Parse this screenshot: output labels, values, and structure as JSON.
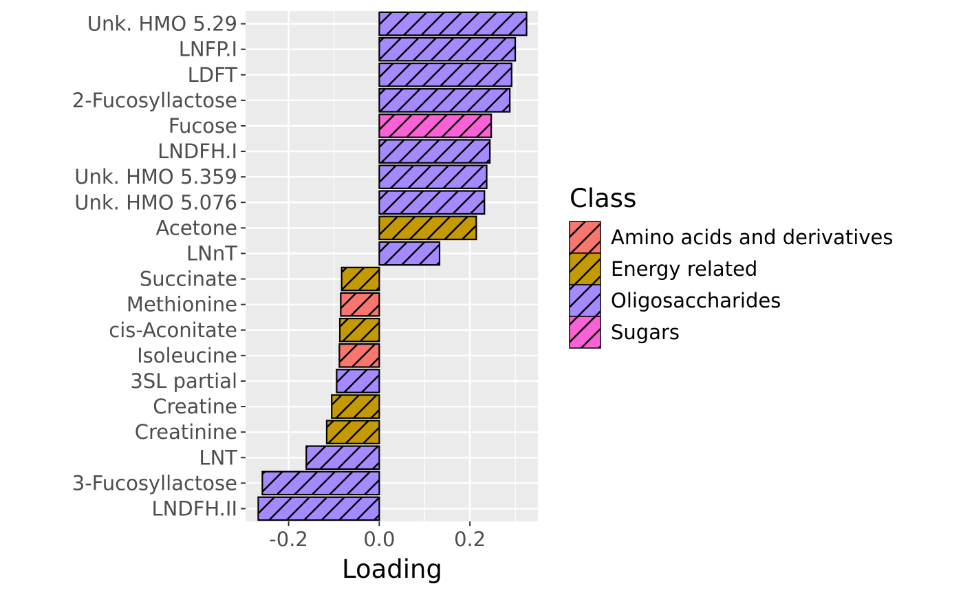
{
  "chart_data": {
    "type": "bar",
    "orientation": "horizontal",
    "xlabel": "Loading",
    "ylabel": "",
    "xlim": [
      -0.295,
      0.35
    ],
    "xticks": [
      -0.2,
      0.0,
      0.2
    ],
    "xtick_labels": [
      "-0.2",
      "0.0",
      "0.2"
    ],
    "grid": true,
    "legend_position": "right",
    "legend_title": "Class",
    "classes": [
      {
        "name": "Amino acids and derivatives",
        "color": "#F8766D"
      },
      {
        "name": "Energy related",
        "color": "#C49A00"
      },
      {
        "name": "Oligosaccharides",
        "color": "#A58AFF"
      },
      {
        "name": "Sugars",
        "color": "#FB61D7"
      }
    ],
    "bars": [
      {
        "label": "Unk. HMO 5.29",
        "value": 0.325,
        "class": "Oligosaccharides"
      },
      {
        "label": "LNFP.I",
        "value": 0.3,
        "class": "Oligosaccharides"
      },
      {
        "label": "LDFT",
        "value": 0.292,
        "class": "Oligosaccharides"
      },
      {
        "label": "2-Fucosyllactose",
        "value": 0.288,
        "class": "Oligosaccharides"
      },
      {
        "label": "Fucose",
        "value": 0.247,
        "class": "Sugars"
      },
      {
        "label": "LNDFH.I",
        "value": 0.244,
        "class": "Oligosaccharides"
      },
      {
        "label": "Unk. HMO 5.359",
        "value": 0.237,
        "class": "Oligosaccharides"
      },
      {
        "label": "Unk. HMO 5.076",
        "value": 0.232,
        "class": "Oligosaccharides"
      },
      {
        "label": "Acetone",
        "value": 0.214,
        "class": "Energy related"
      },
      {
        "label": "LNnT",
        "value": 0.133,
        "class": "Oligosaccharides"
      },
      {
        "label": "Succinate",
        "value": -0.083,
        "class": "Energy related"
      },
      {
        "label": "Methionine",
        "value": -0.085,
        "class": "Amino acids and derivatives"
      },
      {
        "label": "cis-Aconitate",
        "value": -0.087,
        "class": "Energy related"
      },
      {
        "label": "Isoleucine",
        "value": -0.088,
        "class": "Amino acids and derivatives"
      },
      {
        "label": "3SL partial",
        "value": -0.094,
        "class": "Oligosaccharides"
      },
      {
        "label": "Creatine",
        "value": -0.105,
        "class": "Energy related"
      },
      {
        "label": "Creatinine",
        "value": -0.116,
        "class": "Energy related"
      },
      {
        "label": "LNT",
        "value": -0.161,
        "class": "Oligosaccharides"
      },
      {
        "label": "3-Fucosyllactose",
        "value": -0.258,
        "class": "Oligosaccharides"
      },
      {
        "label": "LNDFH.II",
        "value": -0.267,
        "class": "Oligosaccharides"
      }
    ]
  }
}
